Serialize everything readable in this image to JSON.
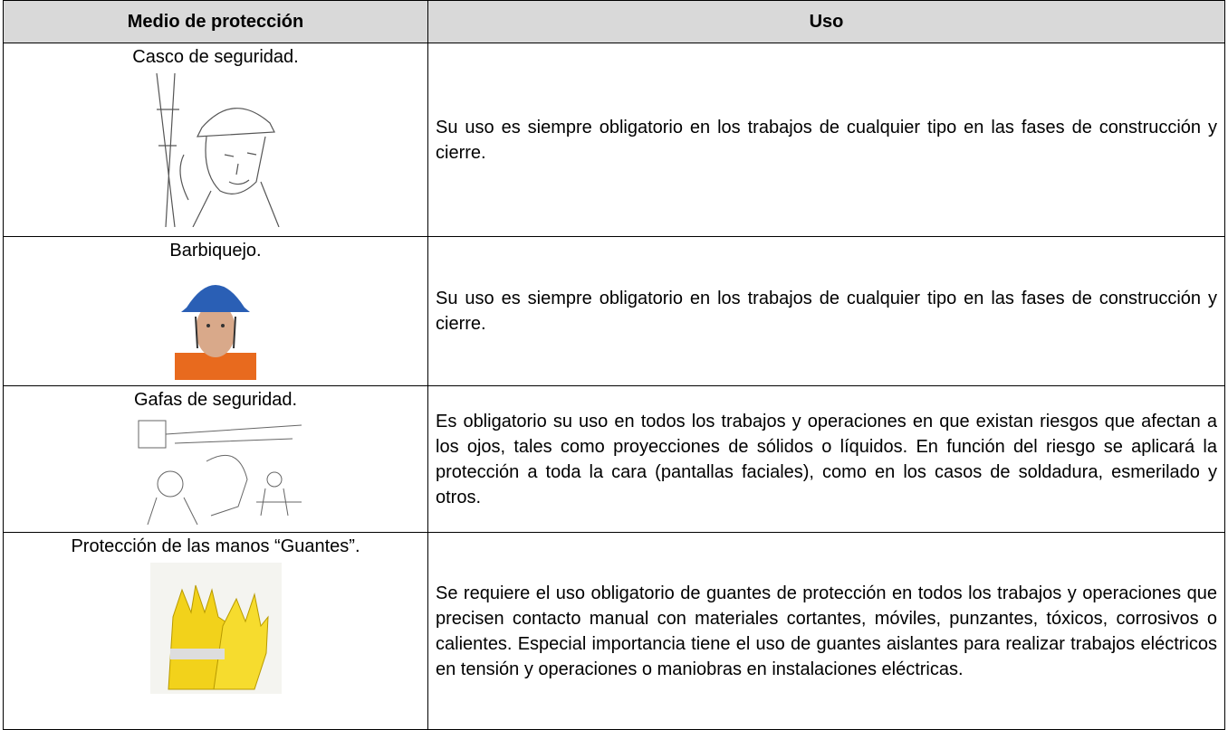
{
  "table": {
    "header": [
      "Medio de protección",
      "Uso"
    ],
    "rows": [
      {
        "label": "Casco de seguridad.",
        "text": "Su uso es siempre obligatorio en los trabajos de cualquier tipo en las fases de construcción y cierre."
      },
      {
        "label": "Barbiquejo.",
        "text": "Su uso es siempre obligatorio en los trabajos de cualquier tipo en las fases de construcción y cierre."
      },
      {
        "label": "Gafas de seguridad.",
        "text": "Es obligatorio su uso en todos los trabajos y operaciones en que existan riesgos que afectan a los ojos, tales como proyecciones de sólidos o líquidos. En función del riesgo se aplicará la protección a toda la cara (pantallas faciales), como en los casos de soldadura, esmerilado y otros."
      },
      {
        "label": "Protección de las manos “Guantes”.",
        "text": "Se requiere el uso obligatorio de guantes de protección en todos los trabajos y operaciones que precisen contacto manual con materiales cortantes, móviles, punzantes, tóxicos, corrosivos o calientes. Especial importancia tiene el uso de guantes aislantes para realizar trabajos eléctricos en tensión y operaciones o maniobras en instalaciones eléctricas."
      }
    ]
  }
}
